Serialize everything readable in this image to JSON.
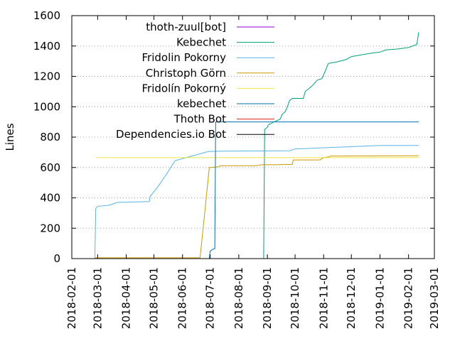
{
  "chart_data": {
    "type": "line",
    "title": "",
    "xlabel": "",
    "ylabel": "Lines",
    "ylim": [
      0,
      1600
    ],
    "xlim": [
      "2018-02-01",
      "2019-03-01"
    ],
    "grid": "horizontal dotted",
    "legend_position": "top-left",
    "y_ticks": [
      "0",
      "200",
      "400",
      "600",
      "800",
      "1000",
      "1200",
      "1400",
      "1600"
    ],
    "x_ticks": [
      "2018-02-01",
      "2018-03-01",
      "2018-04-01",
      "2018-05-01",
      "2018-06-01",
      "2018-07-01",
      "2018-08-01",
      "2018-09-01",
      "2018-10-01",
      "2018-11-01",
      "2018-12-01",
      "2019-01-01",
      "2019-02-01",
      "2019-03-01"
    ],
    "series": [
      {
        "name": "thoth-zuul[bot]",
        "color": "#9400d3",
        "points": [
          [
            "2019-02-17",
            0
          ],
          [
            "2019-02-18",
            0
          ]
        ]
      },
      {
        "name": "Kebechet",
        "color": "#009e73",
        "points": [
          [
            "2018-08-28",
            0
          ],
          [
            "2018-08-29",
            850
          ],
          [
            "2018-09-01",
            865
          ],
          [
            "2018-09-02",
            880
          ],
          [
            "2018-09-03",
            885
          ],
          [
            "2018-09-05",
            890
          ],
          [
            "2018-09-08",
            900
          ],
          [
            "2018-09-12",
            910
          ],
          [
            "2018-09-15",
            920
          ],
          [
            "2018-09-17",
            950
          ],
          [
            "2018-09-20",
            965
          ],
          [
            "2018-09-22",
            990
          ],
          [
            "2018-09-25",
            1040
          ],
          [
            "2018-09-28",
            1055
          ],
          [
            "2018-10-10",
            1055
          ],
          [
            "2018-10-12",
            1100
          ],
          [
            "2018-10-15",
            1115
          ],
          [
            "2018-10-20",
            1140
          ],
          [
            "2018-10-25",
            1175
          ],
          [
            "2018-10-30",
            1185
          ],
          [
            "2018-11-01",
            1210
          ],
          [
            "2018-11-03",
            1240
          ],
          [
            "2018-11-06",
            1285
          ],
          [
            "2018-11-15",
            1295
          ],
          [
            "2018-11-25",
            1310
          ],
          [
            "2018-12-01",
            1330
          ],
          [
            "2018-12-10",
            1340
          ],
          [
            "2018-12-20",
            1350
          ],
          [
            "2019-01-01",
            1360
          ],
          [
            "2019-01-08",
            1375
          ],
          [
            "2019-01-20",
            1380
          ],
          [
            "2019-02-01",
            1390
          ],
          [
            "2019-02-10",
            1410
          ],
          [
            "2019-02-11",
            1450
          ],
          [
            "2019-02-12",
            1490
          ]
        ]
      },
      {
        "name": "Fridolin Pokorny",
        "color": "#56b4e9",
        "points": [
          [
            "2018-02-26",
            0
          ],
          [
            "2018-02-27",
            330
          ],
          [
            "2018-03-01",
            345
          ],
          [
            "2018-03-12",
            350
          ],
          [
            "2018-03-18",
            360
          ],
          [
            "2018-03-22",
            370
          ],
          [
            "2018-04-01",
            372
          ],
          [
            "2018-04-26",
            375
          ],
          [
            "2018-04-27",
            410
          ],
          [
            "2018-05-05",
            470
          ],
          [
            "2018-05-15",
            560
          ],
          [
            "2018-05-24",
            645
          ],
          [
            "2018-06-05",
            665
          ],
          [
            "2018-06-20",
            690
          ],
          [
            "2018-06-29",
            705
          ],
          [
            "2018-07-15",
            708
          ],
          [
            "2018-09-25",
            710
          ],
          [
            "2018-10-01",
            722
          ],
          [
            "2018-11-01",
            730
          ],
          [
            "2019-01-01",
            745
          ],
          [
            "2019-02-12",
            745
          ]
        ]
      },
      {
        "name": "Christoph Görn",
        "color": "#cc9900",
        "points": [
          [
            "2018-02-26",
            5
          ],
          [
            "2018-06-15",
            5
          ],
          [
            "2018-06-20",
            5
          ],
          [
            "2018-06-25",
            300
          ],
          [
            "2018-06-30",
            600
          ],
          [
            "2018-07-10",
            605
          ],
          [
            "2018-07-12",
            612
          ],
          [
            "2018-08-20",
            612
          ],
          [
            "2018-08-26",
            618
          ],
          [
            "2018-09-10",
            618
          ],
          [
            "2018-09-20",
            620
          ],
          [
            "2018-09-28",
            620
          ],
          [
            "2018-09-29",
            650
          ],
          [
            "2018-10-28",
            650
          ],
          [
            "2018-11-01",
            665
          ],
          [
            "2018-11-07",
            670
          ],
          [
            "2018-11-08",
            675
          ],
          [
            "2019-02-12",
            677
          ]
        ]
      },
      {
        "name": "Fridolín Pokorný",
        "color": "#f0e442",
        "points": [
          [
            "2018-02-27",
            665
          ],
          [
            "2019-02-12",
            665
          ]
        ]
      },
      {
        "name": "kebechet",
        "color": "#0072b2",
        "points": [
          [
            "2018-06-30",
            0
          ],
          [
            "2018-07-01",
            50
          ],
          [
            "2018-07-05",
            65
          ],
          [
            "2018-07-06",
            65
          ],
          [
            "2018-07-07",
            900
          ],
          [
            "2018-07-08",
            900
          ],
          [
            "2018-07-09",
            900
          ],
          [
            "2019-02-12",
            900
          ]
        ]
      },
      {
        "name": "Thoth Bot",
        "color": "#e51e10",
        "points": [
          [
            "2019-02-10",
            0
          ],
          [
            "2019-02-12",
            0
          ]
        ]
      },
      {
        "name": "Dependencies.io Bot",
        "color": "#000000",
        "points": [
          [
            "2018-02-26",
            0
          ],
          [
            "2019-02-12",
            0
          ]
        ]
      }
    ]
  }
}
